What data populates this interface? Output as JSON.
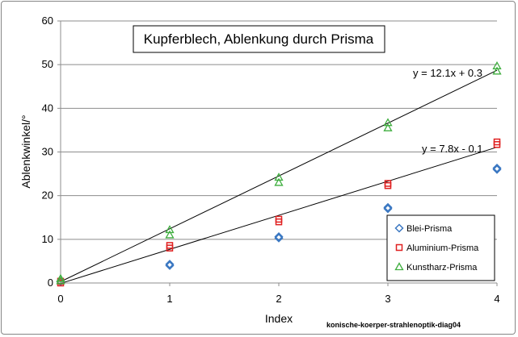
{
  "chart_data": {
    "type": "scatter",
    "title": "Kupferblech, Ablenkung durch Prisma",
    "xlabel": "Index",
    "ylabel": "Ablenkwinkel/°",
    "xlim": [
      0,
      4
    ],
    "ylim": [
      0,
      60
    ],
    "x_ticks": [
      "0",
      "1",
      "2",
      "3",
      "4"
    ],
    "y_ticks": [
      "0",
      "10",
      "20",
      "30",
      "40",
      "50",
      "60"
    ],
    "grid": "horizontal",
    "legend_position": "bottom-right",
    "series": [
      {
        "name": "Blei-Prisma",
        "marker": "diamond",
        "color": "#3b78c2",
        "x": [
          0,
          1,
          1,
          2,
          2,
          3,
          3,
          4,
          4
        ],
        "y": [
          0.3,
          4.0,
          4.3,
          10.3,
          10.6,
          17.0,
          17.3,
          26.0,
          26.3
        ]
      },
      {
        "name": "Aluminium-Prisma",
        "marker": "square",
        "color": "#e02020",
        "x": [
          0,
          0,
          1,
          1,
          2,
          2,
          3,
          3,
          4,
          4
        ],
        "y": [
          0.0,
          0.4,
          8.0,
          8.6,
          14.0,
          14.6,
          22.3,
          22.8,
          31.7,
          32.3
        ]
      },
      {
        "name": "Kunstharz-Prisma",
        "marker": "triangle",
        "color": "#3fae3f",
        "x": [
          0,
          0,
          1,
          1,
          2,
          2,
          3,
          3,
          4,
          4
        ],
        "y": [
          0.5,
          1.0,
          11.0,
          12.2,
          23.0,
          24.2,
          35.5,
          36.7,
          48.5,
          49.7
        ]
      }
    ],
    "trendlines": [
      {
        "label": "y = 12.1x + 0.3",
        "slope": 12.1,
        "intercept": 0.3
      },
      {
        "label": "y = 7.8x - 0.1",
        "slope": 7.8,
        "intercept": -0.1
      }
    ],
    "caption": "konische-koerper-strahlenoptik-diag04"
  }
}
